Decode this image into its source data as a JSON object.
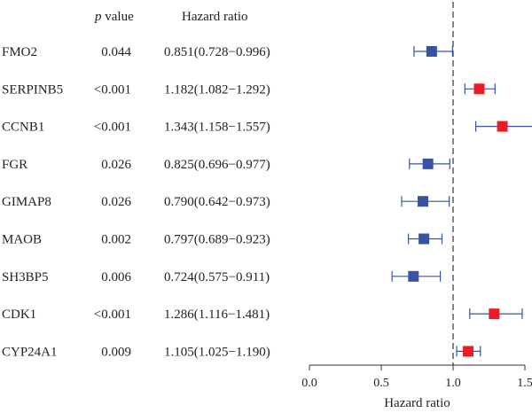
{
  "chart_data": {
    "type": "forest",
    "columns": {
      "pvalue": "p value",
      "hr": "Hazard ratio"
    },
    "xlabel": "Hazard ratio",
    "xlim": [
      0.0,
      1.5
    ],
    "xticks": [
      "0.0",
      "0.5",
      "1.0",
      "1.5"
    ],
    "reference_line": 1.0,
    "colors": {
      "protective": "#3953a4",
      "risk": "#ed1c24",
      "whisker_protective": "#3953a4",
      "whisker_risk": "#3953a4"
    },
    "rows": [
      {
        "gene": "FMO2",
        "pvalue": "0.044",
        "hr_text": "0.851(0.728−0.996)",
        "hr": 0.851,
        "lower": 0.728,
        "upper": 0.996
      },
      {
        "gene": "SERPINB5",
        "pvalue": "<0.001",
        "hr_text": "1.182(1.082−1.292)",
        "hr": 1.182,
        "lower": 1.082,
        "upper": 1.292
      },
      {
        "gene": "CCNB1",
        "pvalue": "<0.001",
        "hr_text": "1.343(1.158−1.557)",
        "hr": 1.343,
        "lower": 1.158,
        "upper": 1.557
      },
      {
        "gene": "FGR",
        "pvalue": "0.026",
        "hr_text": "0.825(0.696−0.977)",
        "hr": 0.825,
        "lower": 0.696,
        "upper": 0.977
      },
      {
        "gene": "GIMAP8",
        "pvalue": "0.026",
        "hr_text": "0.790(0.642−0.973)",
        "hr": 0.79,
        "lower": 0.642,
        "upper": 0.973
      },
      {
        "gene": "MAOB",
        "pvalue": "0.002",
        "hr_text": "0.797(0.689−0.923)",
        "hr": 0.797,
        "lower": 0.689,
        "upper": 0.923
      },
      {
        "gene": "SH3BP5",
        "pvalue": "0.006",
        "hr_text": "0.724(0.575−0.911)",
        "hr": 0.724,
        "lower": 0.575,
        "upper": 0.911
      },
      {
        "gene": "CDK1",
        "pvalue": "<0.001",
        "hr_text": "1.286(1.116−1.481)",
        "hr": 1.286,
        "lower": 1.116,
        "upper": 1.481
      },
      {
        "gene": "CYP24A1",
        "pvalue": "0.009",
        "hr_text": "1.105(1.025−1.190)",
        "hr": 1.105,
        "lower": 1.025,
        "upper": 1.19
      }
    ]
  }
}
